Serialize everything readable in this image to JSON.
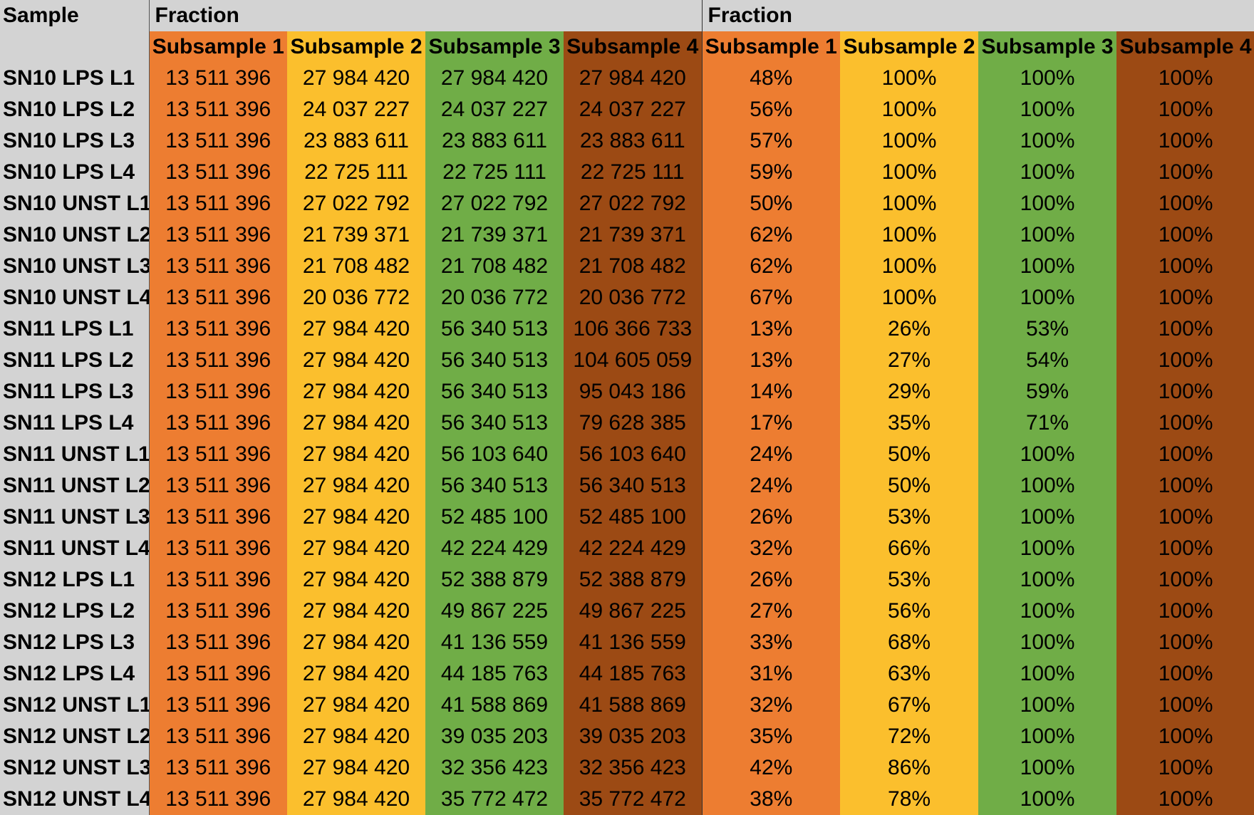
{
  "header": {
    "sample_label": "Sample",
    "group1_label": "Fraction",
    "group2_label": "Fraction",
    "subsamples": [
      "Subsample 1",
      "Subsample 2",
      "Subsample 3",
      "Subsample 4"
    ]
  },
  "colors": {
    "subsample_1": "#ed7d31",
    "subsample_2": "#fbbf2d",
    "subsample_3": "#70ad47",
    "subsample_4": "#9c4a14",
    "header_gray": "#d3d3d3"
  },
  "rows": [
    {
      "sample": "SN10 LPS L1",
      "counts": [
        "13 511 396",
        "27 984 420",
        "27 984 420",
        "27 984 420"
      ],
      "fractions": [
        "48%",
        "100%",
        "100%",
        "100%"
      ]
    },
    {
      "sample": "SN10 LPS L2",
      "counts": [
        "13 511 396",
        "24 037 227",
        "24 037 227",
        "24 037 227"
      ],
      "fractions": [
        "56%",
        "100%",
        "100%",
        "100%"
      ]
    },
    {
      "sample": "SN10 LPS L3",
      "counts": [
        "13 511 396",
        "23 883 611",
        "23 883 611",
        "23 883 611"
      ],
      "fractions": [
        "57%",
        "100%",
        "100%",
        "100%"
      ]
    },
    {
      "sample": "SN10 LPS L4",
      "counts": [
        "13 511 396",
        "22 725 111",
        "22 725 111",
        "22 725 111"
      ],
      "fractions": [
        "59%",
        "100%",
        "100%",
        "100%"
      ]
    },
    {
      "sample": "SN10 UNST L1",
      "counts": [
        "13 511 396",
        "27 022 792",
        "27 022 792",
        "27 022 792"
      ],
      "fractions": [
        "50%",
        "100%",
        "100%",
        "100%"
      ]
    },
    {
      "sample": "SN10 UNST L2",
      "counts": [
        "13 511 396",
        "21 739 371",
        "21 739 371",
        "21 739 371"
      ],
      "fractions": [
        "62%",
        "100%",
        "100%",
        "100%"
      ]
    },
    {
      "sample": "SN10 UNST L3",
      "counts": [
        "13 511 396",
        "21 708 482",
        "21 708 482",
        "21 708 482"
      ],
      "fractions": [
        "62%",
        "100%",
        "100%",
        "100%"
      ]
    },
    {
      "sample": "SN10 UNST L4",
      "counts": [
        "13 511 396",
        "20 036 772",
        "20 036 772",
        "20 036 772"
      ],
      "fractions": [
        "67%",
        "100%",
        "100%",
        "100%"
      ]
    },
    {
      "sample": "SN11 LPS L1",
      "counts": [
        "13 511 396",
        "27 984 420",
        "56 340 513",
        "106 366 733"
      ],
      "fractions": [
        "13%",
        "26%",
        "53%",
        "100%"
      ]
    },
    {
      "sample": "SN11 LPS L2",
      "counts": [
        "13 511 396",
        "27 984 420",
        "56 340 513",
        "104 605 059"
      ],
      "fractions": [
        "13%",
        "27%",
        "54%",
        "100%"
      ]
    },
    {
      "sample": "SN11 LPS L3",
      "counts": [
        "13 511 396",
        "27 984 420",
        "56 340 513",
        "95 043 186"
      ],
      "fractions": [
        "14%",
        "29%",
        "59%",
        "100%"
      ]
    },
    {
      "sample": "SN11 LPS L4",
      "counts": [
        "13 511 396",
        "27 984 420",
        "56 340 513",
        "79 628 385"
      ],
      "fractions": [
        "17%",
        "35%",
        "71%",
        "100%"
      ]
    },
    {
      "sample": "SN11 UNST L1",
      "counts": [
        "13 511 396",
        "27 984 420",
        "56 103 640",
        "56 103 640"
      ],
      "fractions": [
        "24%",
        "50%",
        "100%",
        "100%"
      ]
    },
    {
      "sample": "SN11 UNST L2",
      "counts": [
        "13 511 396",
        "27 984 420",
        "56 340 513",
        "56 340 513"
      ],
      "fractions": [
        "24%",
        "50%",
        "100%",
        "100%"
      ]
    },
    {
      "sample": "SN11 UNST L3",
      "counts": [
        "13 511 396",
        "27 984 420",
        "52 485 100",
        "52 485 100"
      ],
      "fractions": [
        "26%",
        "53%",
        "100%",
        "100%"
      ]
    },
    {
      "sample": "SN11 UNST L4",
      "counts": [
        "13 511 396",
        "27 984 420",
        "42 224 429",
        "42 224 429"
      ],
      "fractions": [
        "32%",
        "66%",
        "100%",
        "100%"
      ]
    },
    {
      "sample": "SN12 LPS L1",
      "counts": [
        "13 511 396",
        "27 984 420",
        "52 388 879",
        "52 388 879"
      ],
      "fractions": [
        "26%",
        "53%",
        "100%",
        "100%"
      ]
    },
    {
      "sample": "SN12 LPS L2",
      "counts": [
        "13 511 396",
        "27 984 420",
        "49 867 225",
        "49 867 225"
      ],
      "fractions": [
        "27%",
        "56%",
        "100%",
        "100%"
      ]
    },
    {
      "sample": "SN12 LPS L3",
      "counts": [
        "13 511 396",
        "27 984 420",
        "41 136 559",
        "41 136 559"
      ],
      "fractions": [
        "33%",
        "68%",
        "100%",
        "100%"
      ]
    },
    {
      "sample": "SN12 LPS L4",
      "counts": [
        "13 511 396",
        "27 984 420",
        "44 185 763",
        "44 185 763"
      ],
      "fractions": [
        "31%",
        "63%",
        "100%",
        "100%"
      ]
    },
    {
      "sample": "SN12 UNST L1",
      "counts": [
        "13 511 396",
        "27 984 420",
        "41 588 869",
        "41 588 869"
      ],
      "fractions": [
        "32%",
        "67%",
        "100%",
        "100%"
      ]
    },
    {
      "sample": "SN12 UNST L2",
      "counts": [
        "13 511 396",
        "27 984 420",
        "39 035 203",
        "39 035 203"
      ],
      "fractions": [
        "35%",
        "72%",
        "100%",
        "100%"
      ]
    },
    {
      "sample": "SN12 UNST L3",
      "counts": [
        "13 511 396",
        "27 984 420",
        "32 356 423",
        "32 356 423"
      ],
      "fractions": [
        "42%",
        "86%",
        "100%",
        "100%"
      ]
    },
    {
      "sample": "SN12 UNST L4",
      "counts": [
        "13 511 396",
        "27 984 420",
        "35 772 472",
        "35 772 472"
      ],
      "fractions": [
        "38%",
        "78%",
        "100%",
        "100%"
      ]
    }
  ]
}
